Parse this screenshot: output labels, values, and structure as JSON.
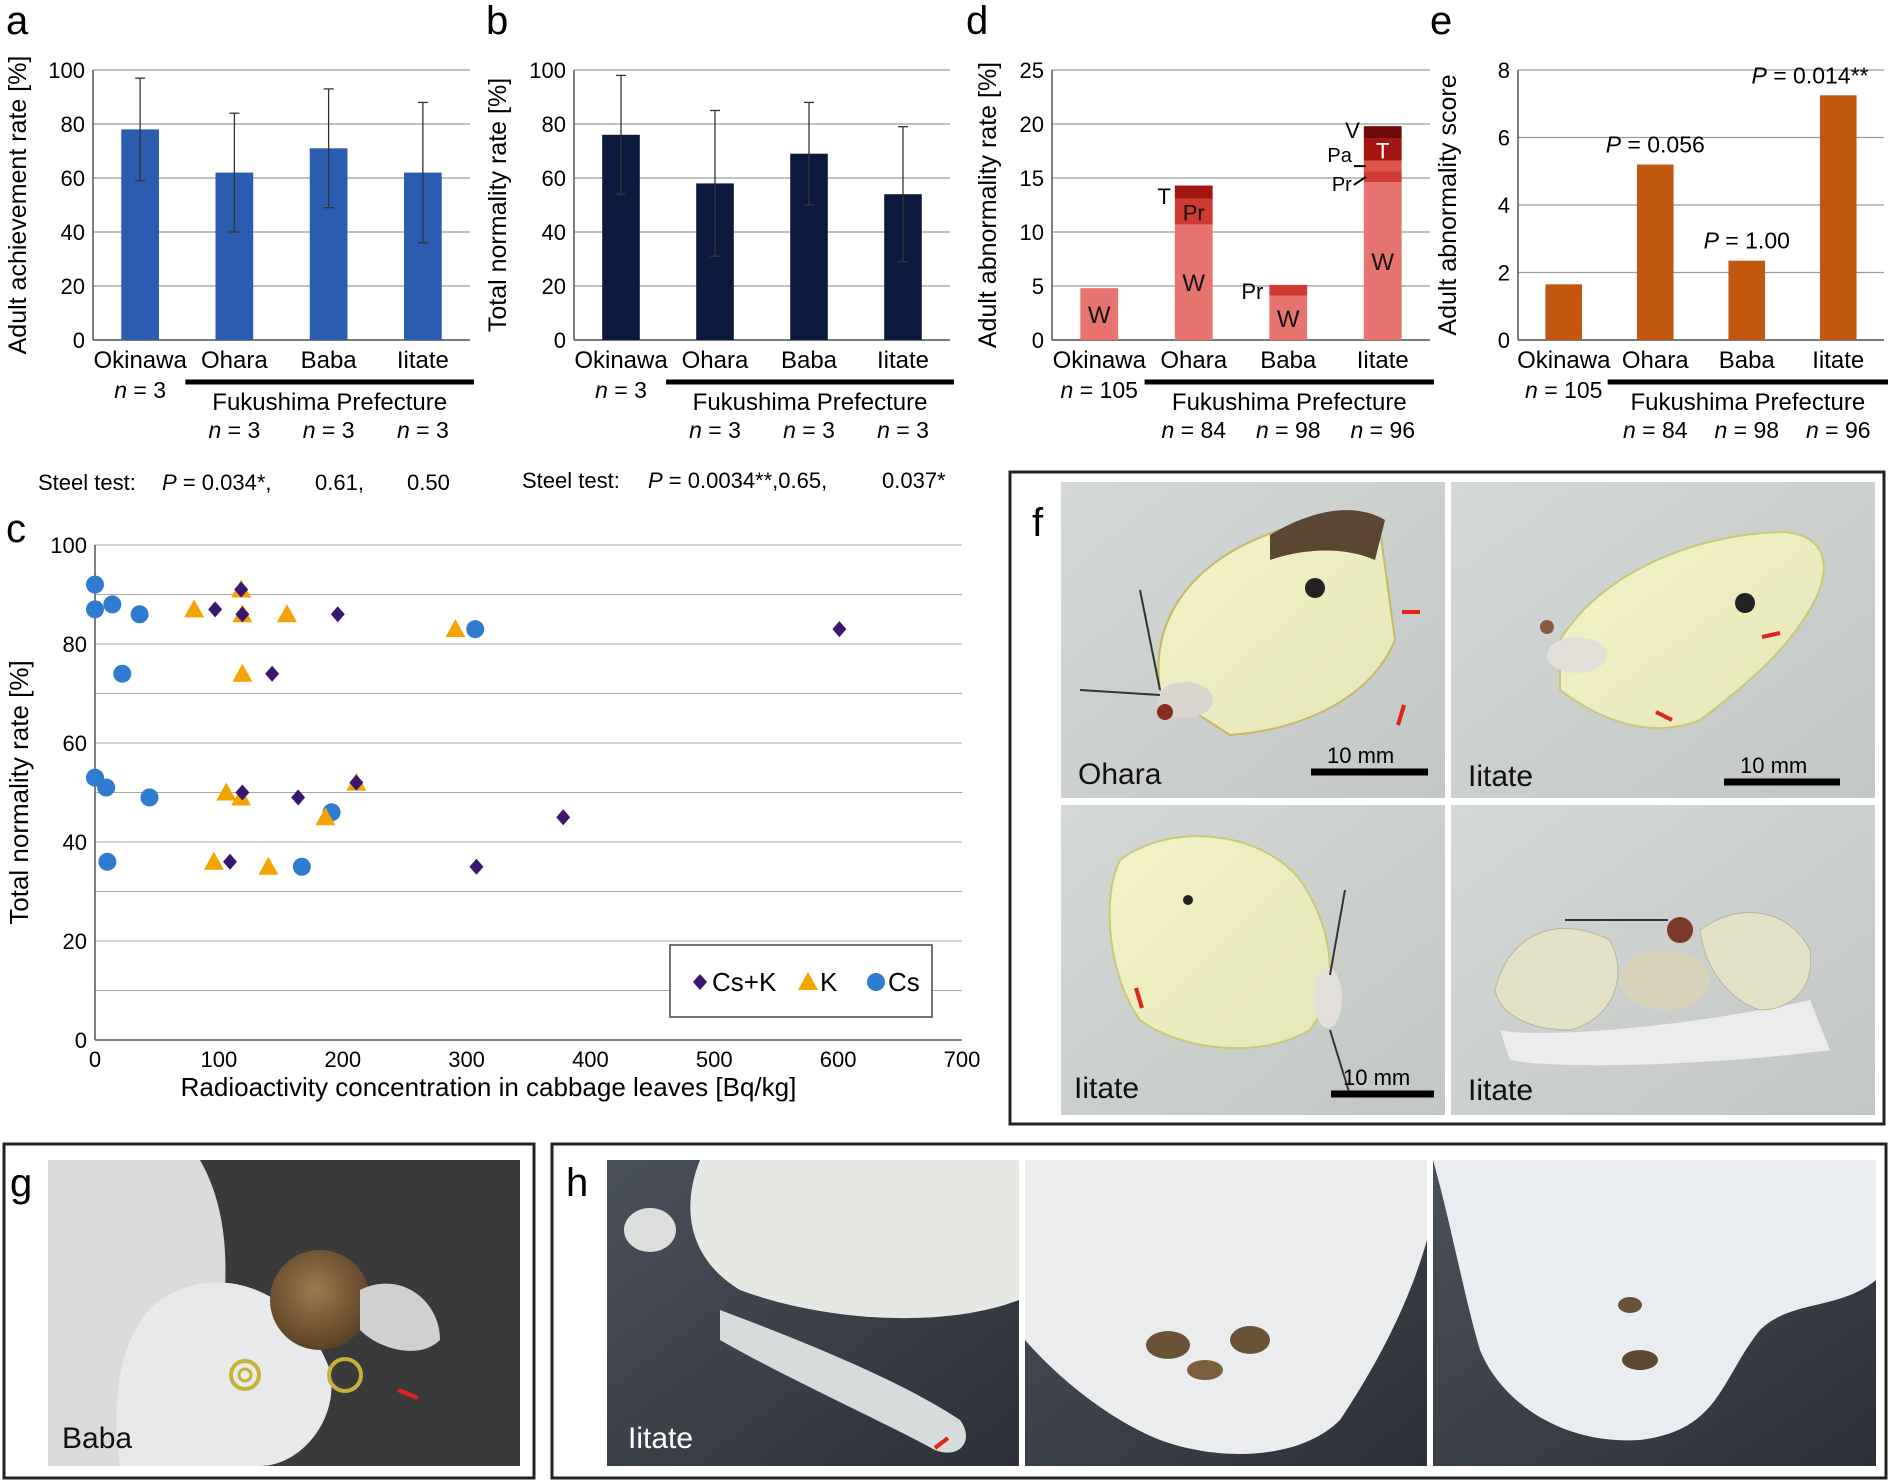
{
  "panels": {
    "a": "a",
    "b": "b",
    "c": "c",
    "d": "d",
    "e": "e",
    "f": "f",
    "g": "g",
    "h": "h"
  },
  "colors": {
    "a_bar": "#2a5db0",
    "b_bar": "#0b1a3c",
    "d_W": "#e8746f",
    "d_Pr": "#cf3a32",
    "d_Pa": "#e0544b",
    "d_T": "#a31511",
    "d_V": "#6e0b08",
    "e_bar": "#c2570f",
    "cs_k": "#3b1670",
    "k": "#f5a300",
    "cs": "#2e7bcf"
  },
  "group_label": "Fukushima Prefecture",
  "n_prefix": "n",
  "p_prefix": "P",
  "steel_label": "Steel test:",
  "chart_data": [
    {
      "panel": "a",
      "type": "bar",
      "categories": [
        "Okinawa",
        "Ohara",
        "Baba",
        "Iitate"
      ],
      "values": [
        78,
        62,
        71,
        62
      ],
      "errors": [
        19,
        22,
        22,
        26
      ],
      "ylabel": "Adult achievement rate [%]",
      "ylim": [
        0,
        100
      ],
      "yticks": [
        0,
        20,
        40,
        60,
        80,
        100
      ],
      "grid": true,
      "n_labels": [
        "= 3",
        "= 3",
        "= 3",
        "= 3"
      ],
      "steel": [
        "= 0.034*,",
        "0.61,",
        "0.50"
      ]
    },
    {
      "panel": "b",
      "type": "bar",
      "categories": [
        "Okinawa",
        "Ohara",
        "Baba",
        "Iitate"
      ],
      "values": [
        76,
        58,
        69,
        54
      ],
      "errors": [
        22,
        27,
        19,
        25
      ],
      "ylabel": "Total normality rate [%]",
      "ylim": [
        0,
        100
      ],
      "yticks": [
        0,
        20,
        40,
        60,
        80,
        100
      ],
      "grid": true,
      "n_labels": [
        "= 3",
        "= 3",
        "= 3",
        "= 3"
      ],
      "steel": [
        "= 0.0034**,0.65,",
        "0.037*"
      ]
    },
    {
      "panel": "c",
      "type": "scatter",
      "xlabel": "Radioactivity concentration in cabbage leaves [Bq/kg]",
      "ylabel": "Total normality rate [%]",
      "xlim": [
        0,
        700
      ],
      "ylim": [
        0,
        100
      ],
      "xticks": [
        0,
        100,
        200,
        300,
        400,
        500,
        600,
        700
      ],
      "yticks": [
        0,
        20,
        40,
        60,
        80,
        100
      ],
      "grid": true,
      "legend": "bottom-right",
      "series": [
        {
          "name": "Cs+K",
          "marker": "diamond",
          "points": [
            [
              97,
              87
            ],
            [
              119,
              86
            ],
            [
              118,
              91
            ],
            [
              143,
              74
            ],
            [
              196,
              86
            ],
            [
              601,
              83
            ],
            [
              119,
              50
            ],
            [
              164,
              49
            ],
            [
              211,
              52
            ],
            [
              109,
              36
            ],
            [
              378,
              45
            ],
            [
              308,
              35
            ]
          ]
        },
        {
          "name": "K",
          "marker": "triangle",
          "points": [
            [
              80,
              87
            ],
            [
              118,
              91
            ],
            [
              119,
              86
            ],
            [
              155,
              86
            ],
            [
              119,
              74
            ],
            [
              291,
              83
            ],
            [
              106,
              50
            ],
            [
              118,
              49
            ],
            [
              186,
              45
            ],
            [
              211,
              52
            ],
            [
              96,
              36
            ],
            [
              140,
              35
            ]
          ]
        },
        {
          "name": "Cs",
          "marker": "circle",
          "points": [
            [
              0,
              92
            ],
            [
              0,
              87
            ],
            [
              14,
              88
            ],
            [
              36,
              86
            ],
            [
              22,
              74
            ],
            [
              307,
              83
            ],
            [
              0,
              53
            ],
            [
              9,
              51
            ],
            [
              44,
              49
            ],
            [
              191,
              46
            ],
            [
              10,
              36
            ],
            [
              167,
              35
            ]
          ]
        }
      ]
    },
    {
      "panel": "d",
      "type": "bar",
      "stacked": true,
      "categories": [
        "Okinawa",
        "Ohara",
        "Baba",
        "Iitate"
      ],
      "ylabel": "Adult abnormality rate [%]",
      "ylim": [
        0,
        25
      ],
      "yticks": [
        0,
        5,
        10,
        15,
        20,
        25
      ],
      "grid": true,
      "n_labels": [
        "= 105",
        "= 84",
        "= 98",
        "= 96"
      ],
      "stacks": [
        [
          {
            "key": "W",
            "value": 4.8
          }
        ],
        [
          {
            "key": "W",
            "value": 10.7
          },
          {
            "key": "Pr",
            "value": 2.4
          },
          {
            "key": "T",
            "value": 1.2
          }
        ],
        [
          {
            "key": "W",
            "value": 4.1
          },
          {
            "key": "Pr",
            "value": 1.0
          }
        ],
        [
          {
            "key": "W",
            "value": 14.6
          },
          {
            "key": "Pr",
            "value": 1.0
          },
          {
            "key": "Pa",
            "value": 1.0
          },
          {
            "key": "T",
            "value": 2.1
          },
          {
            "key": "V",
            "value": 1.1
          }
        ]
      ],
      "segment_labels": {
        "W": "W",
        "Pr": "Pr",
        "T": "T",
        "Pa": "Pa",
        "V": "V"
      }
    },
    {
      "panel": "e",
      "type": "bar",
      "categories": [
        "Okinawa",
        "Ohara",
        "Baba",
        "Iitate"
      ],
      "values": [
        1.65,
        5.2,
        2.35,
        7.25
      ],
      "ylabel": "Adult abnormality score",
      "ylim": [
        0,
        8
      ],
      "yticks": [
        0,
        2,
        4,
        6,
        8
      ],
      "grid": true,
      "n_labels": [
        "= 105",
        "= 84",
        "= 98",
        "= 96"
      ],
      "p_labels": [
        "",
        "= 0.056",
        "= 1.00",
        "= 0.014**"
      ]
    }
  ],
  "photos": {
    "f": [
      "Ohara",
      "Iitate",
      "Iitate",
      "Iitate"
    ],
    "f_scale": [
      "10 mm",
      "10 mm",
      "10 mm"
    ],
    "g": "Baba",
    "h": "Iitate"
  }
}
